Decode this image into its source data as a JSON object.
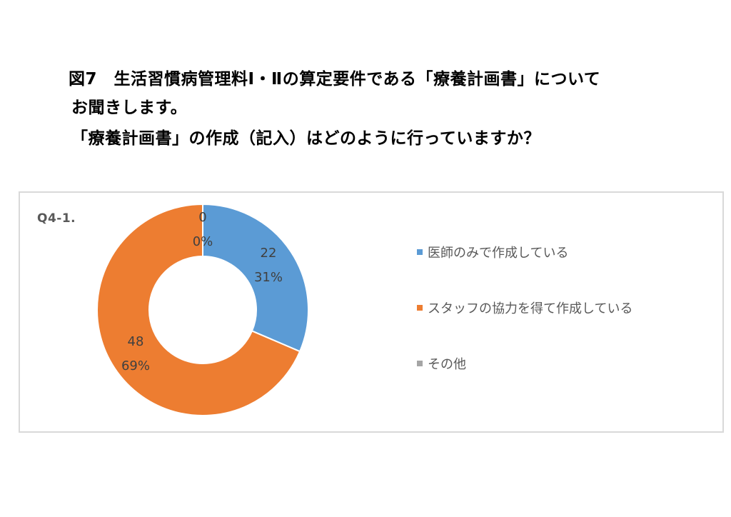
{
  "heading": {
    "title_line_1": "図7　生活習慣病管理料Ⅰ・Ⅱの算定要件である「療養計画書」について",
    "title_line_2": "お聞きします。",
    "question": "「療養計画書」の作成（記入）はどのように行っていますか？"
  },
  "chart_data": {
    "type": "pie",
    "donut": true,
    "label": "Q4-1.",
    "legend_position": "right",
    "categories": [
      "医師のみで作成している",
      "スタッフの協力を得て作成している",
      "その他"
    ],
    "values": [
      22,
      48,
      0
    ],
    "percent_labels": [
      "31%",
      "69%",
      "0%"
    ],
    "colors": [
      "#5b9bd5",
      "#ed7d31",
      "#a5a5a5"
    ]
  }
}
